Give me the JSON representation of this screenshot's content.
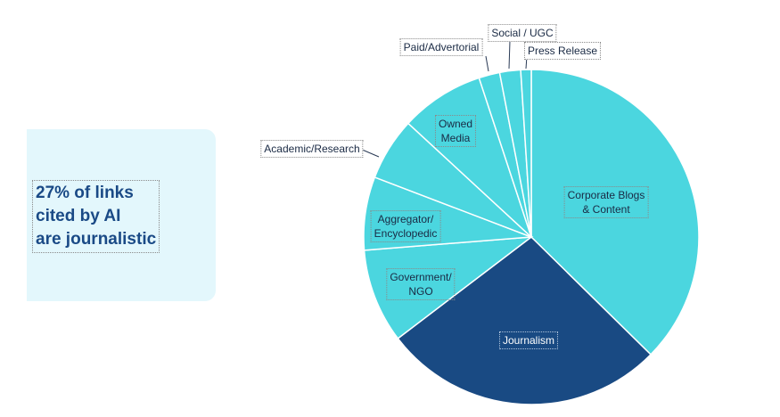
{
  "callout": {
    "text": "27% of links\ncited by AI\nare journalistic"
  },
  "colors": {
    "light_slice": "#4bd6df",
    "dark_slice": "#194a83",
    "slice_border": "#ffffff",
    "panel": "#e3f7fc",
    "callout_text": "#1a4a86"
  },
  "chart_data": {
    "type": "pie",
    "title": "",
    "start_angle_deg": 0,
    "direction": "clockwise",
    "slices": [
      {
        "label": "Corporate Blogs\n& Content",
        "value": 37,
        "color": "#4bd6df",
        "label_position": "inside"
      },
      {
        "label": "Journalism",
        "value": 27,
        "color": "#194a83",
        "label_position": "inside"
      },
      {
        "label": "Government/\nNGO",
        "value": 9,
        "color": "#4bd6df",
        "label_position": "inside"
      },
      {
        "label": "Aggregator/\nEncyclopedic",
        "value": 7,
        "color": "#4bd6df",
        "label_position": "inside"
      },
      {
        "label": "Academic/Research",
        "value": 6,
        "color": "#4bd6df",
        "label_position": "outside"
      },
      {
        "label": "Owned\nMedia",
        "value": 8,
        "color": "#4bd6df",
        "label_position": "inside"
      },
      {
        "label": "Paid/Advertorial",
        "value": 2,
        "color": "#4bd6df",
        "label_position": "outside"
      },
      {
        "label": "Social / UGC",
        "value": 2,
        "color": "#4bd6df",
        "label_position": "outside"
      },
      {
        "label": "Press Release",
        "value": 1,
        "color": "#4bd6df",
        "label_position": "outside"
      }
    ]
  }
}
